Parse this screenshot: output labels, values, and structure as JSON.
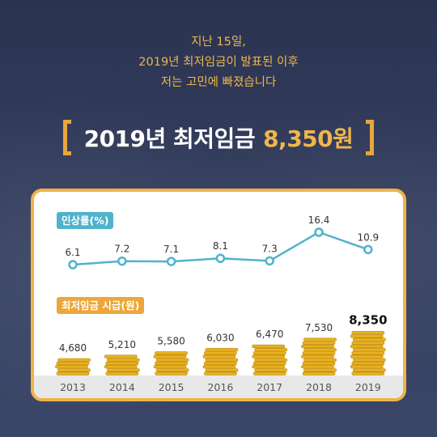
{
  "intro": {
    "line1": "지난 15일,",
    "line2": "2019년 최저임금이 발표된 이후",
    "line3": "저는 고민에 빠졌습니다"
  },
  "headline": {
    "year_text": "2019년 최저임금",
    "amount_text": "8,350원"
  },
  "colors": {
    "accent_orange": "#efb24a",
    "line_blue": "#4fb3cc",
    "coin_gold": "#e8b11f",
    "background_navy": "#2f3856"
  },
  "chart_data": [
    {
      "type": "line",
      "title": "인상률(%)",
      "x": [
        "2013",
        "2014",
        "2015",
        "2016",
        "2017",
        "2018",
        "2019"
      ],
      "values": [
        6.1,
        7.2,
        7.1,
        8.1,
        7.3,
        16.4,
        10.9
      ],
      "labels": [
        "6.1",
        "7.2",
        "7.1",
        "8.1",
        "7.3",
        "16.4",
        "10.9"
      ]
    },
    {
      "type": "bar",
      "title": "최저임금 시급(원)",
      "categories": [
        "2013",
        "2014",
        "2015",
        "2016",
        "2017",
        "2018",
        "2019"
      ],
      "values": [
        4680,
        5210,
        5580,
        6030,
        6470,
        7530,
        8350
      ],
      "labels": [
        "4,680",
        "5,210",
        "5,580",
        "6,030",
        "6,470",
        "7,530",
        "8,350"
      ],
      "bar_style": "stacked coins"
    }
  ]
}
